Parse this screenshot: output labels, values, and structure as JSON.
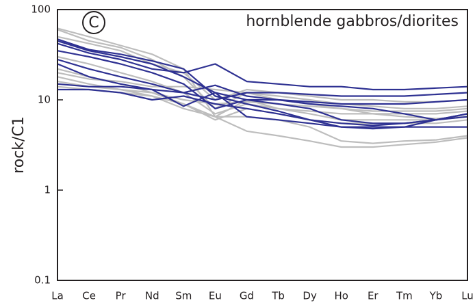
{
  "chart_data": {
    "type": "line",
    "panel_label": "C",
    "annotation": "hornblende gabbros/diorites",
    "ylabel": "rock/C1",
    "yscale": "log",
    "ylim": [
      0.1,
      100
    ],
    "yticks": [
      0.1,
      1,
      10,
      100
    ],
    "categories": [
      "La",
      "Ce",
      "Pr",
      "Nd",
      "Sm",
      "Eu",
      "Gd",
      "Tb",
      "Dy",
      "Ho",
      "Er",
      "Tm",
      "Yb",
      "Lu"
    ],
    "series": [
      {
        "color": "#bdbdbd",
        "values": [
          62,
          50,
          40,
          32,
          22,
          6.5,
          10,
          8,
          7,
          6,
          6,
          6,
          6,
          6.5
        ]
      },
      {
        "color": "#bdbdbd",
        "values": [
          60,
          45,
          38,
          28,
          18,
          8,
          12,
          11,
          10,
          9,
          8.5,
          8,
          8,
          8.5
        ]
      },
      {
        "color": "#bdbdbd",
        "values": [
          30,
          25,
          20,
          16,
          12,
          7,
          9,
          8,
          7.5,
          7,
          7,
          7,
          7,
          7.5
        ]
      },
      {
        "color": "#bdbdbd",
        "values": [
          22,
          18,
          15,
          12,
          9,
          6.5,
          4.5,
          4,
          3.5,
          3,
          3,
          3.2,
          3.4,
          3.8
        ]
      },
      {
        "color": "#bdbdbd",
        "values": [
          18,
          15,
          13,
          11,
          8,
          6.5,
          6.5,
          6,
          5,
          3.5,
          3.3,
          3.5,
          3.6,
          4
        ]
      },
      {
        "color": "#bdbdbd",
        "values": [
          16,
          14,
          13,
          12,
          10,
          9,
          9.5,
          9,
          8.5,
          8,
          7.5,
          7.5,
          7.5,
          8
        ]
      },
      {
        "color": "#bdbdbd",
        "values": [
          50,
          42,
          35,
          25,
          20,
          10,
          13,
          12,
          11,
          10,
          10,
          9.5,
          9.5,
          10
        ]
      },
      {
        "color": "#bdbdbd",
        "values": [
          20,
          17,
          16,
          14,
          14,
          13,
          12,
          10,
          9,
          8,
          7,
          6.5,
          6.2,
          6.5
        ]
      },
      {
        "color": "#bdbdbd",
        "values": [
          14,
          13,
          12,
          11,
          9,
          6,
          8,
          7,
          6,
          5.5,
          5.5,
          5.5,
          5.5,
          6
        ]
      },
      {
        "color": "#2e3192",
        "values": [
          45,
          35,
          30,
          25,
          18,
          12,
          10,
          9,
          8,
          6,
          5.5,
          5.5,
          6,
          7
        ]
      },
      {
        "color": "#2e3192",
        "values": [
          42,
          33,
          28,
          22,
          20,
          25,
          16,
          15,
          14,
          14,
          13,
          13,
          13.5,
          14
        ]
      },
      {
        "color": "#2e3192",
        "values": [
          35,
          30,
          25,
          20,
          15,
          8,
          10,
          10,
          9,
          8.5,
          8,
          7,
          6,
          6.5
        ]
      },
      {
        "color": "#2e3192",
        "values": [
          28,
          22,
          18,
          15,
          12,
          10,
          12,
          12,
          11.5,
          11,
          11,
          11,
          11.5,
          12
        ]
      },
      {
        "color": "#2e3192",
        "values": [
          25,
          18,
          15,
          13,
          8.5,
          12,
          6.5,
          6,
          5.5,
          5,
          5,
          5,
          5,
          5
        ]
      },
      {
        "color": "#2e3192",
        "values": [
          15,
          14,
          14,
          13,
          12,
          14.5,
          11,
          10,
          9.5,
          9,
          9,
          9,
          9.5,
          10
        ]
      },
      {
        "color": "#2e3192",
        "values": [
          13,
          13,
          12,
          10,
          11,
          9,
          8,
          7,
          6,
          5,
          4.8,
          5,
          6,
          7
        ]
      },
      {
        "color": "#2e3192",
        "values": [
          47,
          36,
          32,
          27,
          22,
          11,
          9,
          7.5,
          6,
          5.5,
          5.2,
          5.5,
          6,
          7
        ]
      }
    ]
  }
}
